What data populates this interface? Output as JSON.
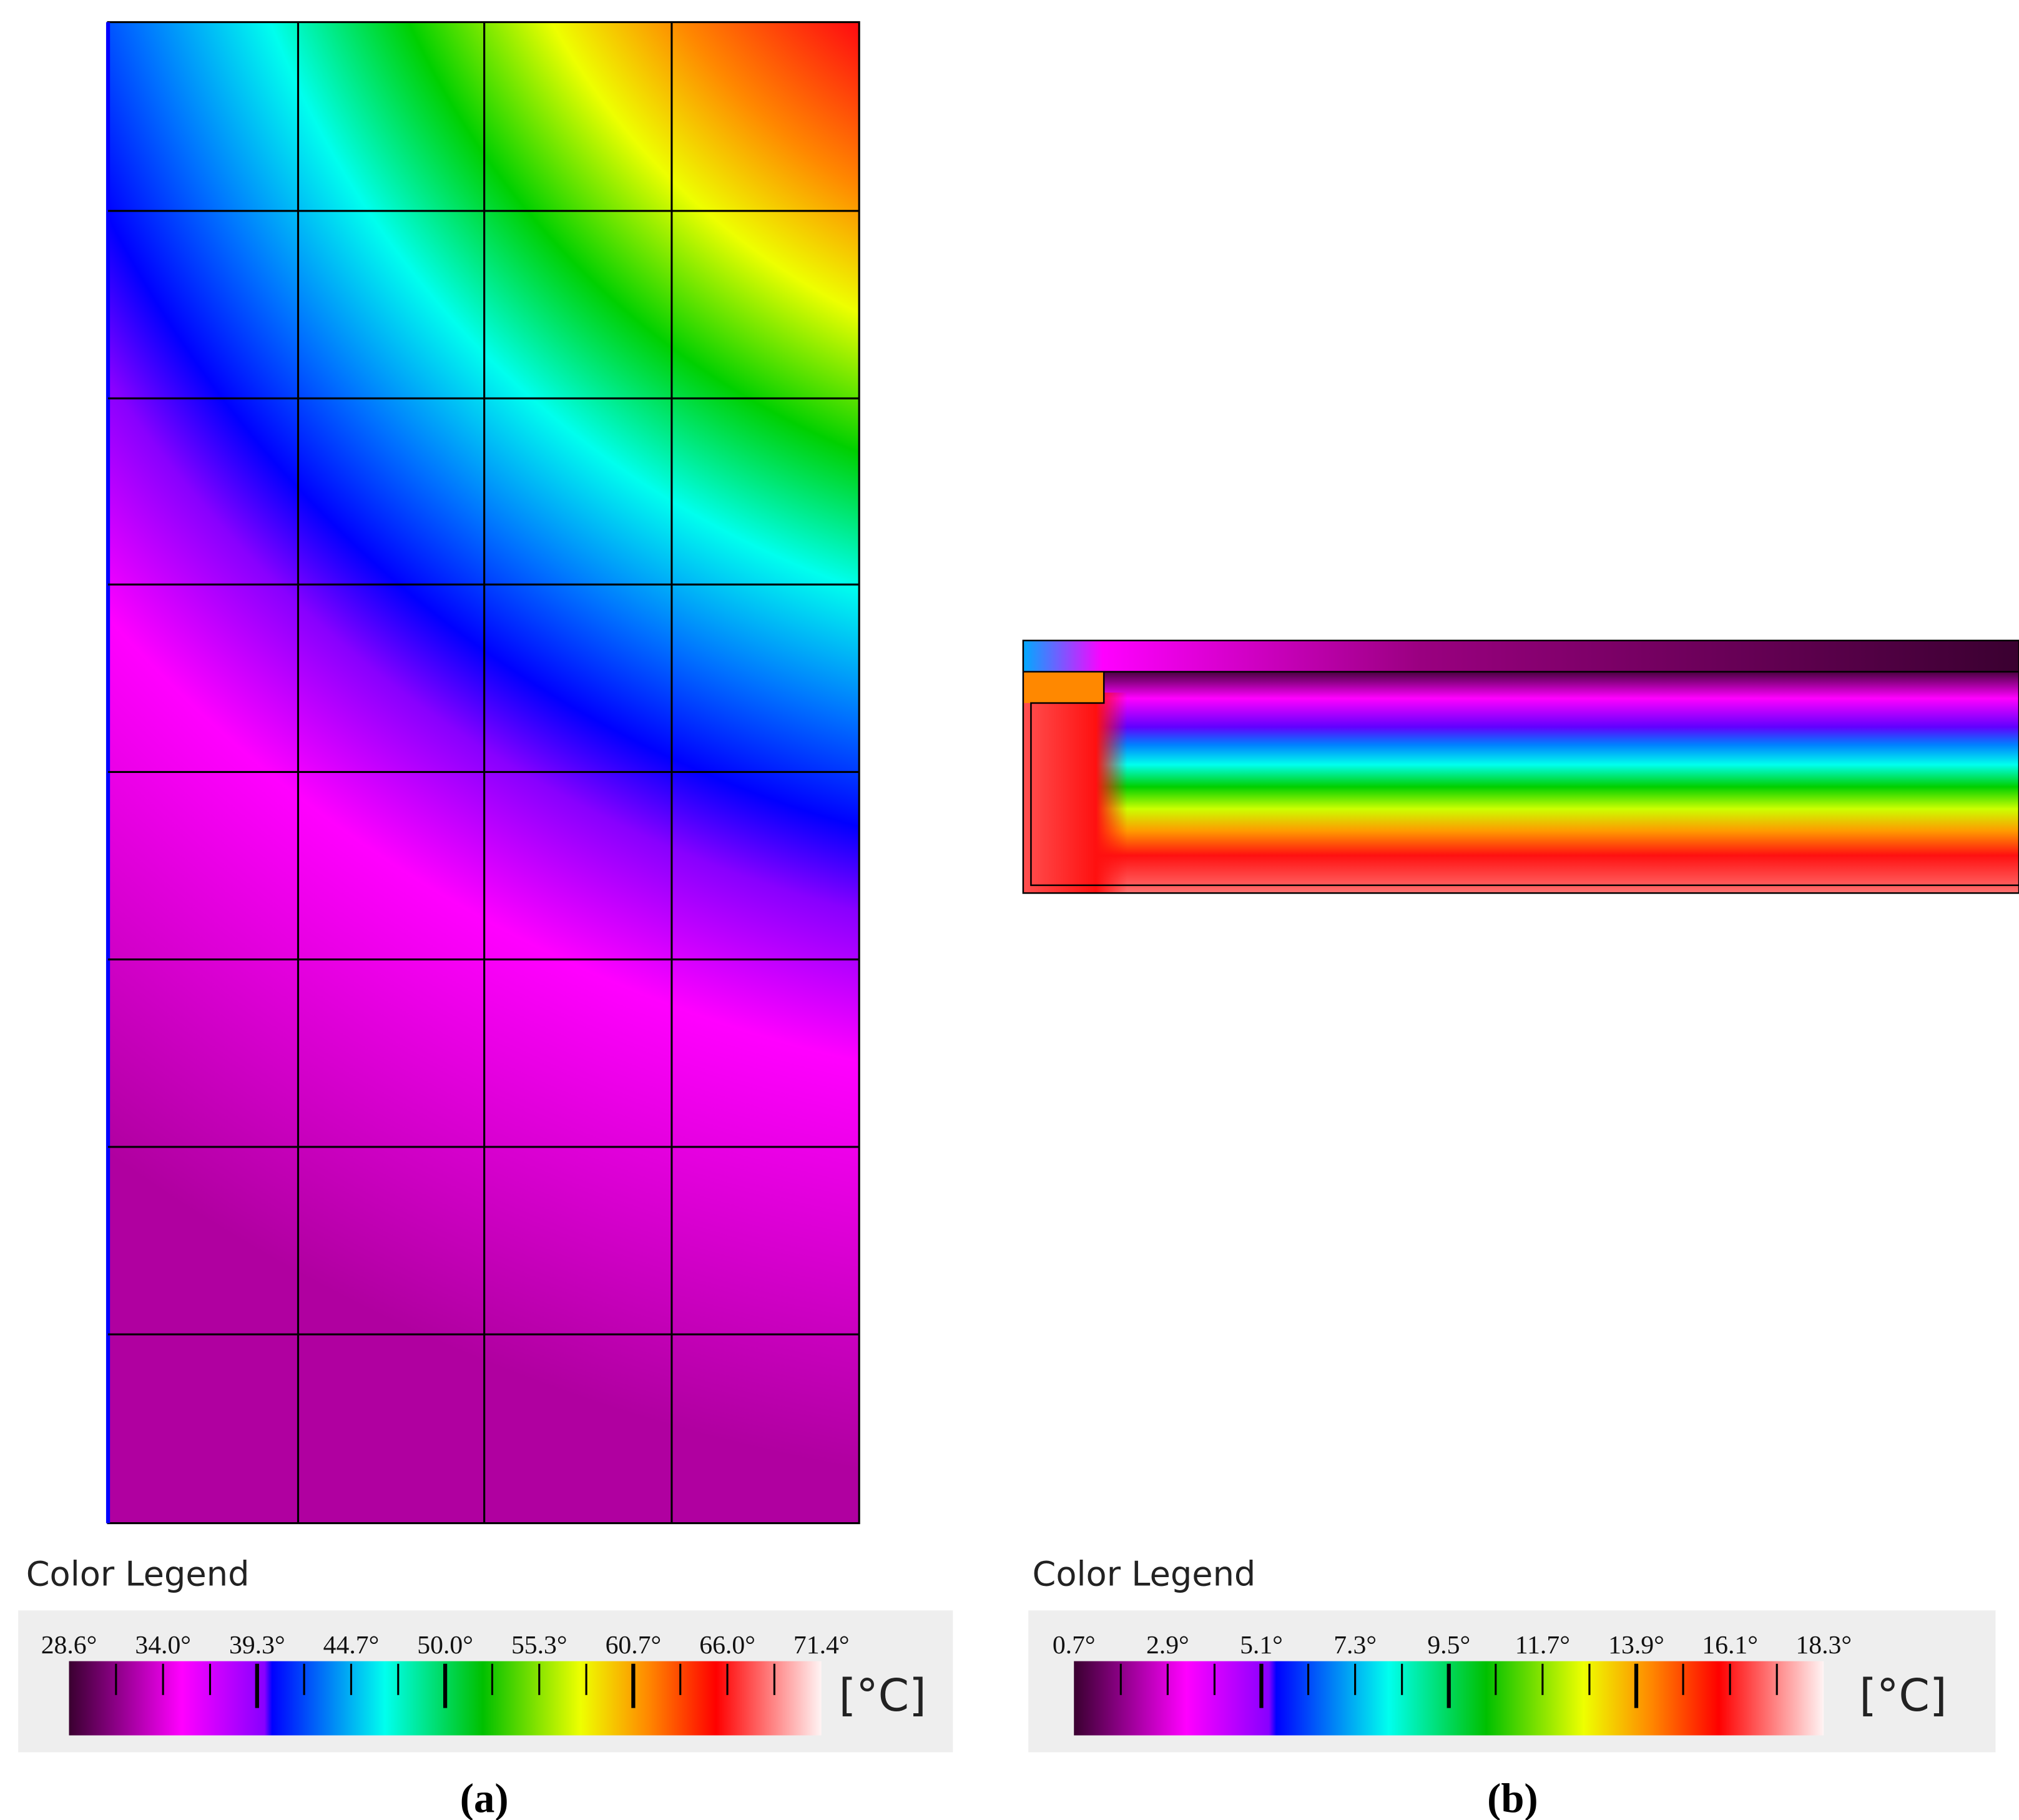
{
  "panels": [
    {
      "legend": {
        "title": "Color Legend",
        "ticks": [
          "28.6°",
          "34.0°",
          "39.3°",
          "44.7°",
          "50.0°",
          "55.3°",
          "60.7°",
          "66.0°",
          "71.4°"
        ],
        "unit": "[°C]"
      },
      "caption": "(a)"
    },
    {
      "legend": {
        "title": "Color Legend",
        "ticks": [
          "0.7°",
          "2.9°",
          "5.1°",
          "7.3°",
          "9.5°",
          "11.7°",
          "13.9°",
          "16.1°",
          "18.3°"
        ],
        "unit": "[°C]"
      },
      "caption": "(b)"
    }
  ]
}
